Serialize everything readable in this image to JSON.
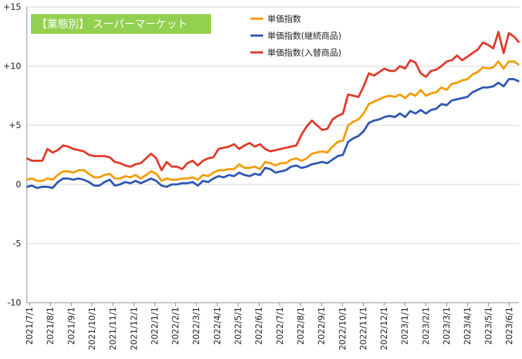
{
  "chart_data": {
    "type": "line",
    "title": "【業態別】 スーパーマーケット",
    "y_ticks": [
      "+15",
      "+10",
      "+5",
      "0",
      "-5",
      "-10"
    ],
    "ylim": [
      -10,
      15
    ],
    "x_ticks": [
      "2021/7/1",
      "2021/8/1",
      "2021/9/1",
      "2021/10/1",
      "2021/11/1",
      "2021/12/1",
      "2022/1/1",
      "2022/2/1",
      "2022/3/1",
      "2022/4/1",
      "2022/5/1",
      "2022/6/1",
      "2022/7/1",
      "2022/8/1",
      "2022/9/1",
      "2022/10/1",
      "2022/11/1",
      "2022/12/1",
      "2023/1/1",
      "2023/2/1",
      "2023/3/1",
      "2023/4/1",
      "2023/5/1",
      "2023/6/1"
    ],
    "grid": "horizontal",
    "legend_position": "top-right",
    "series": [
      {
        "name": "単価指数",
        "color": "#f59c00",
        "values": [
          0.4,
          0.5,
          0.3,
          0.3,
          0.5,
          0.4,
          0.8,
          1.1,
          1.1,
          1.0,
          1.2,
          1.2,
          0.9,
          0.6,
          0.6,
          0.8,
          0.9,
          0.5,
          0.5,
          0.7,
          0.6,
          0.8,
          0.5,
          0.8,
          1.1,
          0.9,
          0.3,
          0.5,
          0.4,
          0.4,
          0.5,
          0.5,
          0.6,
          0.4,
          0.8,
          0.7,
          1.0,
          1.2,
          1.2,
          1.3,
          1.3,
          1.7,
          1.4,
          1.4,
          1.5,
          1.3,
          1.9,
          1.8,
          1.6,
          1.8,
          1.8,
          2.1,
          2.2,
          2.0,
          2.2,
          2.6,
          2.7,
          2.8,
          2.7,
          3.2,
          3.6,
          3.7,
          5.0,
          5.3,
          5.5,
          6.0,
          6.8,
          7.0,
          7.2,
          7.4,
          7.5,
          7.4,
          7.6,
          7.3,
          7.7,
          7.5,
          8.0,
          7.5,
          7.7,
          7.8,
          8.2,
          8.0,
          8.5,
          8.6,
          8.8,
          8.9,
          9.3,
          9.5,
          9.9,
          9.8,
          9.9,
          10.4,
          9.8,
          10.4,
          10.4,
          10.1
        ]
      },
      {
        "name": "単価指数(継続商品)",
        "color": "#2f57b4",
        "values": [
          -0.2,
          -0.1,
          -0.3,
          -0.2,
          -0.2,
          -0.3,
          0.2,
          0.5,
          0.5,
          0.4,
          0.5,
          0.4,
          0.2,
          -0.1,
          -0.1,
          0.2,
          0.4,
          -0.1,
          0.0,
          0.2,
          0.1,
          0.3,
          0.1,
          0.3,
          0.5,
          0.3,
          -0.1,
          -0.2,
          0.0,
          0.0,
          0.1,
          0.1,
          0.2,
          -0.1,
          0.3,
          0.2,
          0.5,
          0.7,
          0.6,
          0.8,
          0.7,
          1.0,
          0.8,
          0.7,
          0.9,
          0.8,
          1.4,
          1.3,
          1.0,
          1.1,
          1.2,
          1.5,
          1.6,
          1.4,
          1.5,
          1.7,
          1.8,
          1.9,
          1.8,
          2.1,
          2.4,
          2.5,
          3.6,
          3.9,
          4.1,
          4.5,
          5.2,
          5.4,
          5.5,
          5.7,
          5.8,
          5.7,
          6.0,
          5.7,
          6.2,
          6.0,
          6.3,
          6.0,
          6.3,
          6.4,
          6.8,
          6.7,
          7.1,
          7.2,
          7.3,
          7.4,
          7.8,
          8.0,
          8.2,
          8.2,
          8.3,
          8.6,
          8.3,
          8.9,
          8.9,
          8.7
        ]
      },
      {
        "name": "単価指数(入替商品)",
        "color": "#e03a2a",
        "values": [
          2.2,
          2.0,
          2.0,
          2.0,
          3.0,
          2.7,
          2.9,
          3.3,
          3.2,
          3.0,
          2.9,
          2.8,
          2.5,
          2.4,
          2.4,
          2.4,
          2.3,
          1.9,
          1.8,
          1.6,
          1.5,
          1.7,
          1.8,
          2.2,
          2.6,
          2.2,
          1.2,
          1.9,
          1.5,
          1.5,
          1.3,
          1.8,
          2.0,
          1.6,
          2.0,
          2.2,
          2.3,
          3.0,
          3.1,
          3.2,
          3.4,
          3.0,
          3.3,
          3.5,
          3.2,
          3.4,
          3.0,
          2.8,
          2.9,
          3.0,
          3.1,
          3.2,
          3.3,
          4.2,
          4.9,
          5.4,
          5.0,
          4.6,
          4.7,
          5.5,
          5.8,
          6.0,
          7.6,
          7.5,
          7.4,
          8.3,
          9.4,
          9.2,
          9.5,
          9.8,
          9.6,
          9.6,
          10.0,
          9.8,
          10.5,
          10.3,
          9.4,
          9.1,
          9.6,
          9.7,
          10.0,
          10.4,
          10.5,
          10.9,
          10.5,
          10.8,
          11.1,
          11.4,
          12.0,
          11.8,
          11.5,
          12.9,
          11.1,
          12.8,
          12.5,
          12.0
        ]
      }
    ]
  }
}
